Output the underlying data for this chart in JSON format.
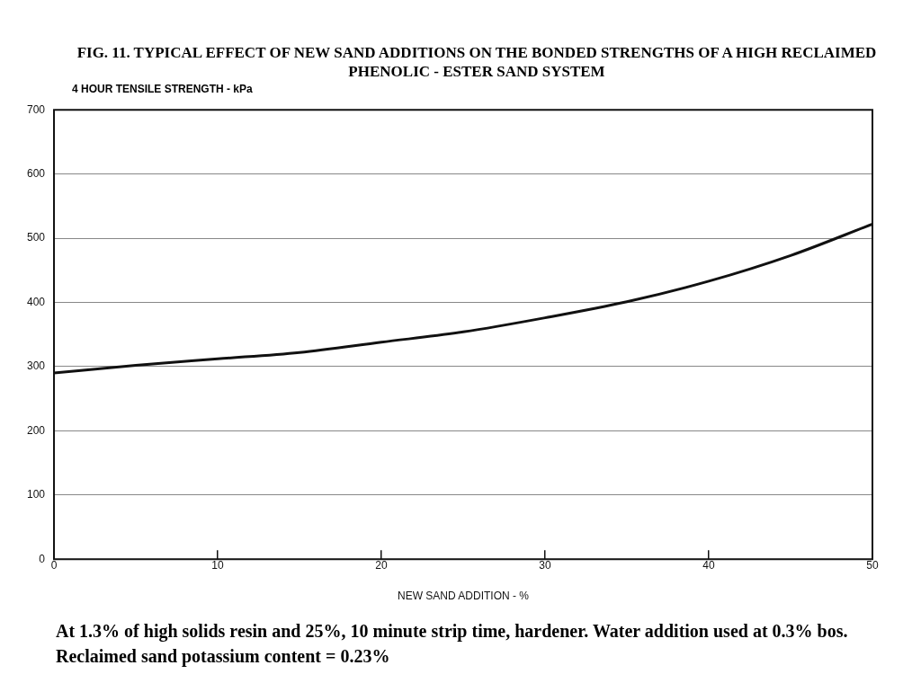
{
  "chart_data": {
    "type": "line",
    "title": "FIG. 11. TYPICAL EFFECT OF NEW SAND ADDITIONS ON THE BONDED STRENGTHS OF A HIGH RECLAIMED PHENOLIC - ESTER SAND SYSTEM",
    "xlabel": "NEW SAND ADDITION - %",
    "ylabel": "4 HOUR TENSILE STRENGTH - kPa",
    "x": [
      0,
      5,
      10,
      15,
      20,
      25,
      30,
      35,
      40,
      45,
      50
    ],
    "series": [
      {
        "color": "#111111",
        "values": [
          290,
          302,
          312,
          322,
          338,
          354,
          376,
          401,
          433,
          473,
          522
        ]
      }
    ],
    "xlim": [
      0,
      50
    ],
    "xticks": [
      0,
      10,
      20,
      30,
      40,
      50
    ],
    "ylim": [
      0,
      700
    ],
    "yticks": [
      0,
      100,
      200,
      300,
      400,
      500,
      600,
      700
    ],
    "grid": "y",
    "legend": false,
    "marker": "none",
    "line_style": "solid",
    "annotations": [
      "At 1.3% of high solids resin and 25%, 10 minute strip time, hardener. Water addition used at 0.3% bos. Reclaimed sand potassium content = 0.23%"
    ]
  }
}
